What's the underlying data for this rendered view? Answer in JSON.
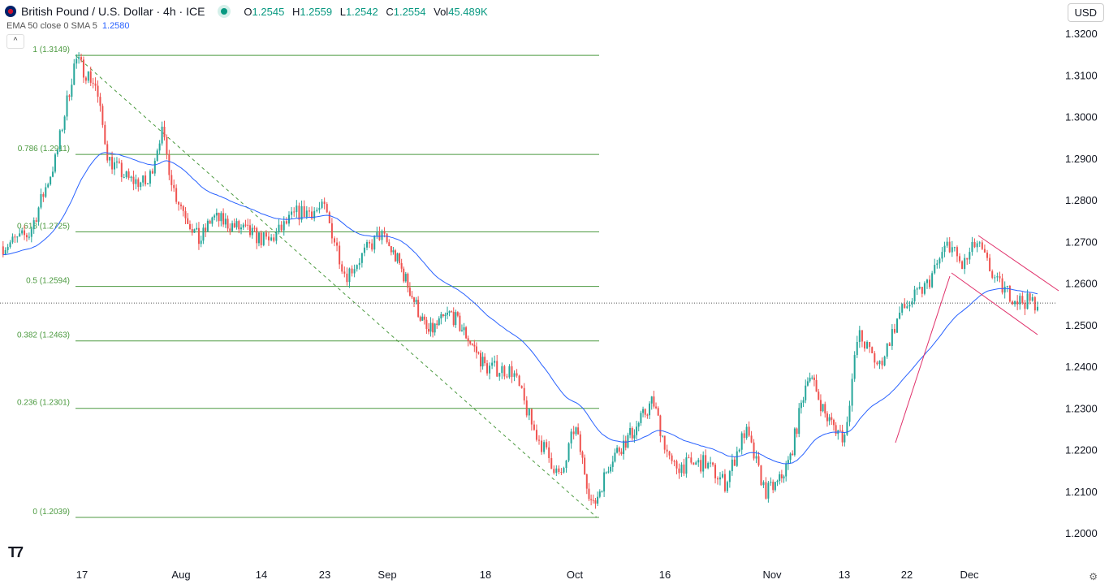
{
  "header": {
    "title": "British Pound / U.S. Dollar · 4h · ICE",
    "open": "1.2545",
    "high": "1.2559",
    "low": "1.2542",
    "close": "1.2554",
    "vol": "45.489K",
    "labels": {
      "o": "O",
      "h": "H",
      "l": "L",
      "c": "C",
      "vol": "Vol"
    }
  },
  "indicator": {
    "label": "EMA 50 close 0 SMA 5",
    "value": "1.2580"
  },
  "currency": "USD",
  "collapse_icon": "^",
  "logo": "TV",
  "colors": {
    "up": "#26a69a",
    "down": "#ef5350",
    "ema": "#2962ff",
    "fib": "#4c9a40",
    "trend": "#e0306a"
  },
  "chart_data": {
    "type": "candlestick",
    "title": "British Pound / U.S. Dollar · 4h",
    "ylim": [
      1.2,
      1.32
    ],
    "yticks": [
      "1.3200",
      "1.3100",
      "1.3000",
      "1.2900",
      "1.2800",
      "1.2700",
      "1.2600",
      "1.2500",
      "1.2400",
      "1.2300",
      "1.2200",
      "1.2100",
      "1.2000"
    ],
    "xticks": [
      {
        "label": "17",
        "day": 0
      },
      {
        "label": "Aug",
        "day": 15
      },
      {
        "label": "14",
        "day": 28
      },
      {
        "label": "23",
        "day": 37
      },
      {
        "label": "Sep",
        "day": 46
      },
      {
        "label": "18",
        "day": 63
      },
      {
        "label": "Oct",
        "day": 76
      },
      {
        "label": "16",
        "day": 91
      },
      {
        "label": "Nov",
        "day": 107
      },
      {
        "label": "13",
        "day": 119
      },
      {
        "label": "22",
        "day": 128
      },
      {
        "label": "Dec",
        "day": 137
      }
    ],
    "price_path": [
      [
        -12,
        1.269
      ],
      [
        -8,
        1.272
      ],
      [
        -4,
        1.29
      ],
      [
        -1,
        1.314
      ],
      [
        2,
        1.308
      ],
      [
        4,
        1.29
      ],
      [
        7,
        1.285
      ],
      [
        10,
        1.284
      ],
      [
        12,
        1.297
      ],
      [
        14,
        1.282
      ],
      [
        18,
        1.27
      ],
      [
        20,
        1.276
      ],
      [
        25,
        1.273
      ],
      [
        29,
        1.27
      ],
      [
        33,
        1.277
      ],
      [
        37,
        1.278
      ],
      [
        40,
        1.262
      ],
      [
        45,
        1.272
      ],
      [
        48,
        1.265
      ],
      [
        53,
        1.248
      ],
      [
        57,
        1.253
      ],
      [
        60,
        1.247
      ],
      [
        63,
        1.24
      ],
      [
        67,
        1.239
      ],
      [
        70,
        1.225
      ],
      [
        74,
        1.213
      ],
      [
        76,
        1.226
      ],
      [
        79,
        1.206
      ],
      [
        82,
        1.218
      ],
      [
        86,
        1.225
      ],
      [
        89,
        1.232
      ],
      [
        92,
        1.216
      ],
      [
        97,
        1.217
      ],
      [
        100,
        1.212
      ],
      [
        103,
        1.225
      ],
      [
        106,
        1.21
      ],
      [
        108,
        1.212
      ],
      [
        110,
        1.218
      ],
      [
        113,
        1.239
      ],
      [
        116,
        1.228
      ],
      [
        119,
        1.223
      ],
      [
        121,
        1.248
      ],
      [
        124,
        1.24
      ],
      [
        127,
        1.253
      ],
      [
        131,
        1.26
      ],
      [
        134,
        1.27
      ],
      [
        136,
        1.264
      ],
      [
        138,
        1.27
      ],
      [
        141,
        1.26
      ],
      [
        144,
        1.256
      ],
      [
        147,
        1.2554
      ]
    ],
    "last_price": 1.2554,
    "ema_period": 50,
    "fibonacci": [
      {
        "label": "1 (1.3149)",
        "price": 1.3149
      },
      {
        "label": "0.786 (1.2911)",
        "price": 1.2911
      },
      {
        "label": "0.618 (1.2725)",
        "price": 1.2725
      },
      {
        "label": "0.5 (1.2594)",
        "price": 1.2594
      },
      {
        "label": "0.382 (1.2463)",
        "price": 1.2463
      },
      {
        "label": "0.236 (1.2301)",
        "price": 1.2301
      },
      {
        "label": "0 (1.2039)",
        "price": 1.2039
      }
    ]
  }
}
